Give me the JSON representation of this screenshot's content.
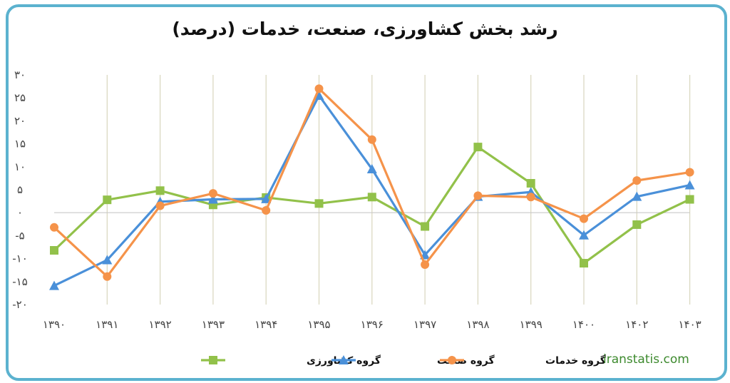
{
  "chart_data": {
    "type": "line",
    "title": "رشد بخش کشاورزی، صنعت، خدمات (درصد)",
    "categories": [
      "۱۳۹۰",
      "۱۳۹۱",
      "۱۳۹۲",
      "۱۳۹۳",
      "۱۳۹۴",
      "۱۳۹۵",
      "۱۳۹۶",
      "۱۳۹۷",
      "۱۳۹۸",
      "۱۳۹۹",
      "۱۴۰۰",
      "۱۴۰۲",
      "۱۴۰۳"
    ],
    "y_ticks": [
      {
        "value": 30,
        "label": "۳۰"
      },
      {
        "value": 25,
        "label": "۲۵"
      },
      {
        "value": 20,
        "label": "۲۰"
      },
      {
        "value": 15,
        "label": "۱۵"
      },
      {
        "value": 10,
        "label": "۱۰"
      },
      {
        "value": 5,
        "label": "۵"
      },
      {
        "value": 0,
        "label": "۰"
      },
      {
        "value": -5,
        "label": "-۵"
      },
      {
        "value": -10,
        "label": "-۱۰"
      },
      {
        "value": -15,
        "label": "-۱۵"
      },
      {
        "value": -20,
        "label": "-۲۰"
      }
    ],
    "ylim": [
      -20,
      30
    ],
    "grid": "vertical",
    "legend": "bottom",
    "series": [
      {
        "name": "گروه کشاورزی",
        "color": "#92c14a",
        "marker": "square",
        "values": [
          -8.2,
          2.8,
          4.8,
          1.7,
          3.3,
          2.0,
          3.4,
          -3.0,
          14.3,
          6.4,
          -11.0,
          -2.6,
          2.9
        ]
      },
      {
        "name": "گروه صنعت",
        "color": "#4a90d9",
        "marker": "triangle",
        "values": [
          -15.9,
          -10.3,
          2.4,
          2.9,
          3.0,
          25.5,
          9.5,
          -9.2,
          3.5,
          4.5,
          -4.9,
          3.5,
          6.0
        ]
      },
      {
        "name": "گروه خدمات",
        "color": "#f5934a",
        "marker": "circle",
        "values": [
          -3.2,
          -13.9,
          1.5,
          4.2,
          0.5,
          27.0,
          15.9,
          -11.3,
          3.7,
          3.4,
          -1.3,
          7.0,
          8.8
        ]
      }
    ]
  },
  "watermark": "iranstatis.com"
}
